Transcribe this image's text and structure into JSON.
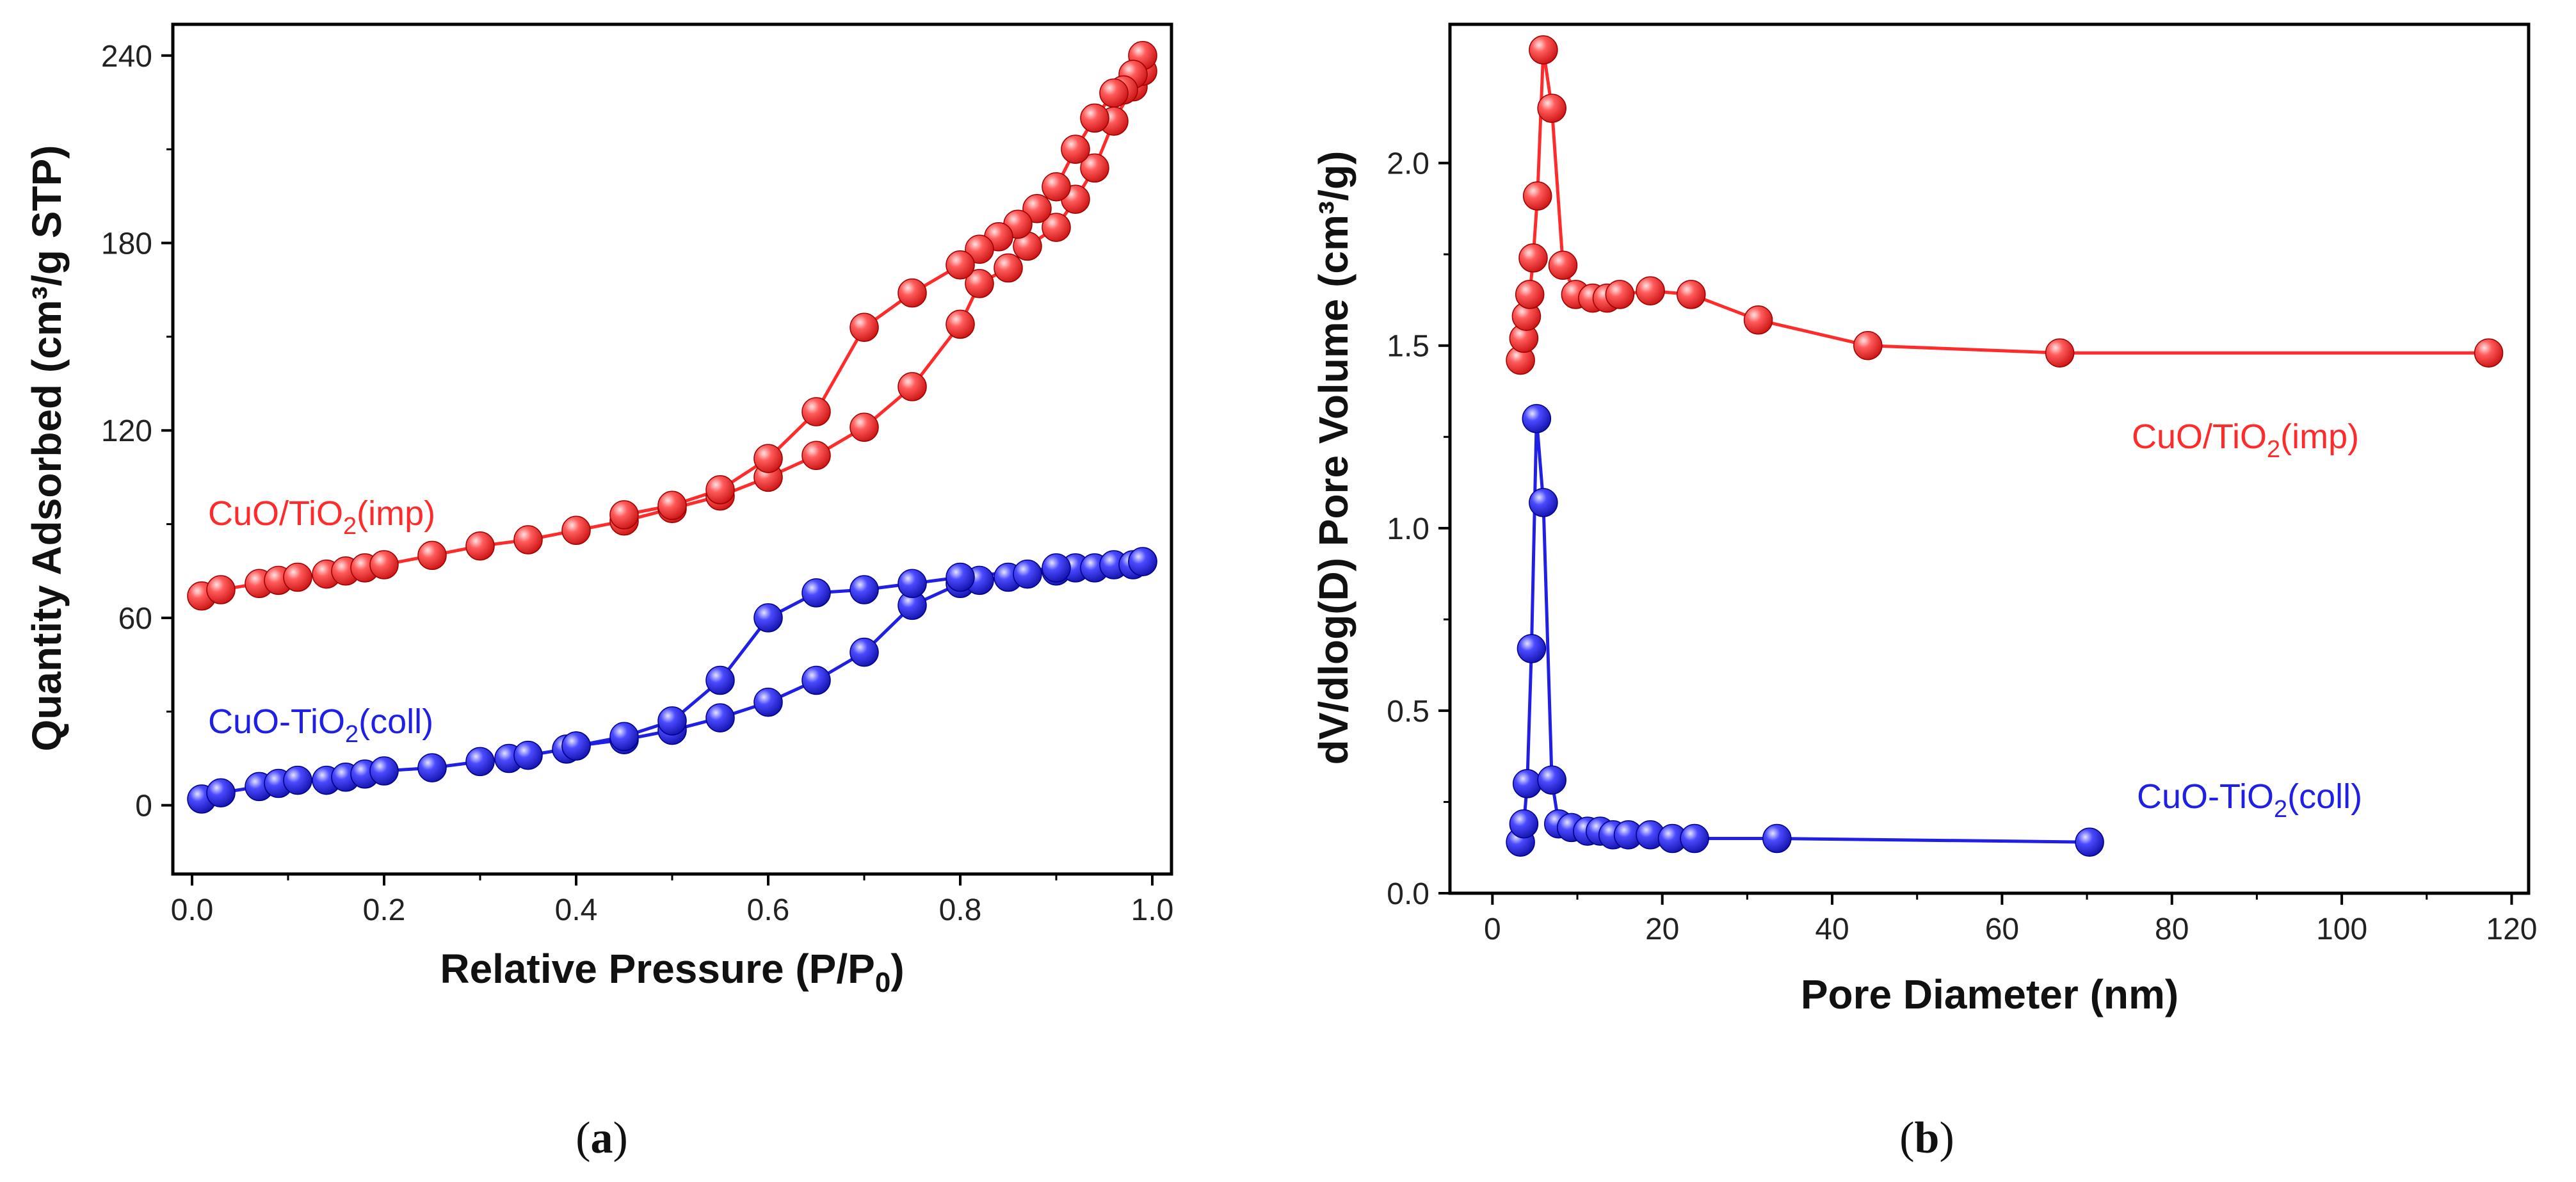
{
  "chart_data": [
    {
      "type": "scatter",
      "subfigure_label": "(a)",
      "xlabel": "Relative Pressure (P/P0)",
      "ylabel": "Quantity Adsorbed (cm³/g STP)",
      "xlim": [
        -0.02,
        1.02
      ],
      "ylim": [
        -22,
        250
      ],
      "xticks": [
        0.0,
        0.2,
        0.4,
        0.6,
        0.8,
        1.0
      ],
      "xtick_labels": [
        "0.0",
        "0.2",
        "0.4",
        "0.6",
        "0.8",
        "1.0"
      ],
      "yticks": [
        0,
        60,
        120,
        180,
        240
      ],
      "ytick_labels": [
        "0",
        "60",
        "120",
        "180",
        "240"
      ],
      "series": [
        {
          "name": "CuO/TiO2(imp)",
          "color": "#ff2b2b",
          "label_parts": {
            "pre": "CuO/TiO",
            "sub": "2",
            "post": "(imp)"
          },
          "segments": [
            {
              "name": "adsorption",
              "x": [
                0.01,
                0.03,
                0.07,
                0.09,
                0.11,
                0.14,
                0.16,
                0.18,
                0.2,
                0.25,
                0.3,
                0.35,
                0.4,
                0.45,
                0.5,
                0.55,
                0.6,
                0.65,
                0.7,
                0.75,
                0.8,
                0.82,
                0.85,
                0.87,
                0.9,
                0.92,
                0.94,
                0.96,
                0.98,
                0.99
              ],
              "y": [
                67,
                69,
                71,
                72,
                73,
                74,
                75,
                76,
                77,
                80,
                83,
                85,
                88,
                91,
                95,
                99,
                105,
                112,
                121,
                134,
                154,
                167,
                172,
                179,
                185,
                194,
                204,
                219,
                230,
                235
              ]
            },
            {
              "name": "desorption",
              "x": [
                0.99,
                0.98,
                0.97,
                0.96,
                0.94,
                0.92,
                0.9,
                0.88,
                0.86,
                0.84,
                0.82,
                0.8,
                0.75,
                0.7,
                0.65,
                0.6,
                0.55,
                0.5,
                0.45
              ],
              "y": [
                240,
                234,
                229,
                228,
                220,
                210,
                198,
                191,
                186,
                182,
                178,
                173,
                164,
                153,
                126,
                111,
                101,
                96,
                93
              ]
            }
          ]
        },
        {
          "name": "CuO-TiO2(coll)",
          "color": "#1f1fe6",
          "label_parts": {
            "pre": "CuO-TiO",
            "sub": "2",
            "post": "(coll)"
          },
          "segments": [
            {
              "name": "adsorption",
              "x": [
                0.01,
                0.03,
                0.07,
                0.09,
                0.11,
                0.14,
                0.16,
                0.18,
                0.2,
                0.25,
                0.3,
                0.33,
                0.35,
                0.39,
                0.4,
                0.45,
                0.5,
                0.55,
                0.6,
                0.65,
                0.7,
                0.75,
                0.8,
                0.82,
                0.85,
                0.87,
                0.9,
                0.92,
                0.94,
                0.96,
                0.98,
                0.99
              ],
              "y": [
                2,
                4,
                6,
                7,
                8,
                8,
                9,
                10,
                11,
                12,
                14,
                15,
                16,
                18,
                19,
                21,
                24,
                28,
                33,
                40,
                49,
                64,
                71,
                72,
                73,
                74,
                75,
                76,
                76,
                77,
                77,
                78
              ]
            },
            {
              "name": "desorption",
              "x": [
                0.99,
                0.9,
                0.8,
                0.75,
                0.7,
                0.65,
                0.6,
                0.55,
                0.5,
                0.45,
                0.4
              ],
              "y": [
                78,
                76,
                73,
                71,
                69,
                68,
                60,
                40,
                27,
                22,
                19
              ]
            }
          ]
        }
      ]
    },
    {
      "type": "line",
      "subfigure_label": "(b)",
      "xlabel": "Pore Diameter (nm)",
      "ylabel": "dV/dlog(D) Pore Volume (cm³/g)",
      "xlim": [
        -5,
        122
      ],
      "ylim": [
        0,
        2.38
      ],
      "xticks": [
        0,
        20,
        40,
        60,
        80,
        100,
        120
      ],
      "xtick_labels": [
        "0",
        "20",
        "40",
        "60",
        "80",
        "100",
        "120"
      ],
      "yticks": [
        0.0,
        0.5,
        1.0,
        1.5,
        2.0
      ],
      "ytick_labels": [
        "0.0",
        "0.5",
        "1.0",
        "1.5",
        "2.0"
      ],
      "series": [
        {
          "name": "CuO/TiO2(imp)",
          "color": "#ff2b2b",
          "label_parts": {
            "pre": "CuO/TiO",
            "sub": "2",
            "post": "(imp)"
          },
          "x": [
            3.3,
            3.7,
            4.0,
            4.4,
            4.8,
            5.3,
            6.0,
            7.0,
            8.3,
            9.8,
            11.8,
            13.5,
            15.0,
            18.6,
            23.4,
            31.3,
            44.2,
            66.8,
            117.3
          ],
          "y": [
            1.46,
            1.52,
            1.58,
            1.64,
            1.74,
            1.91,
            2.31,
            2.15,
            1.72,
            1.64,
            1.63,
            1.63,
            1.64,
            1.65,
            1.64,
            1.57,
            1.5,
            1.48,
            1.48
          ]
        },
        {
          "name": "CuO-TiO2(coll)",
          "color": "#1f1fe6",
          "label_parts": {
            "pre": "CuO-TiO",
            "sub": "2",
            "post": "(coll)"
          },
          "x": [
            3.3,
            3.7,
            4.1,
            4.6,
            5.2,
            6.0,
            7.0,
            7.8,
            9.3,
            11.2,
            12.7,
            14.2,
            16.0,
            18.6,
            21.2,
            23.8,
            33.5,
            70.3
          ],
          "y": [
            0.14,
            0.19,
            0.3,
            0.67,
            1.3,
            1.07,
            0.31,
            0.19,
            0.18,
            0.17,
            0.17,
            0.16,
            0.16,
            0.16,
            0.15,
            0.15,
            0.15,
            0.14
          ]
        }
      ]
    }
  ]
}
